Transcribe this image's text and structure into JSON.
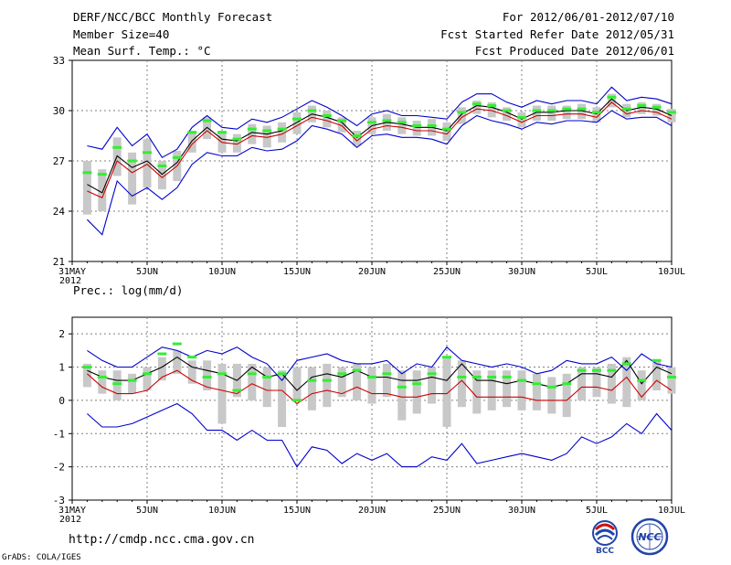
{
  "header": {
    "title": "DERF/NCC/BCC Monthly Forecast",
    "member_size": "Member Size=40",
    "variable": "Mean Surf. Temp.: °C",
    "period": "For 2012/06/01-2012/07/10",
    "fcst_started": "Fcst Started Refer Date 2012/05/31",
    "fcst_produced": "Fcst Produced Date 2012/06/01"
  },
  "footer": {
    "url": "http://cmdp.ncc.cma.gov.cn",
    "grads": "GrADS: COLA/IGES",
    "logo_bcc": "BCC",
    "logo_ncc": "NCC"
  },
  "colors": {
    "envelope": "#0000cc",
    "ensemble_mean": "#000000",
    "lower": "#cc0000",
    "spread_bar": "#c8c8c8",
    "observed_tick": "#33ee33",
    "grid": "#808080"
  },
  "chart_data": [
    {
      "type": "line",
      "title": "Mean Surf. Temp.: °C",
      "ylim": [
        21,
        33
      ],
      "yticks": [
        21,
        24,
        27,
        30,
        33
      ],
      "x_tick_labels": [
        "31MAY",
        "5JUN",
        "10JUN",
        "15JUN",
        "20JUN",
        "25JUN",
        "30JUN",
        "5JUL",
        "10JUL"
      ],
      "x_year_label": "2012",
      "x_day_positions": [
        0,
        5,
        10,
        15,
        20,
        25,
        30,
        35,
        40
      ],
      "x": [
        1,
        2,
        3,
        4,
        5,
        6,
        7,
        8,
        9,
        10,
        11,
        12,
        13,
        14,
        15,
        16,
        17,
        18,
        19,
        20,
        21,
        22,
        23,
        24,
        25,
        26,
        27,
        28,
        29,
        30,
        31,
        32,
        33,
        34,
        35,
        36,
        37,
        38,
        39,
        40
      ],
      "series": [
        {
          "name": "max",
          "values": [
            27.9,
            27.7,
            29.0,
            27.9,
            28.6,
            27.2,
            27.7,
            29.0,
            29.7,
            29.0,
            28.9,
            29.5,
            29.3,
            29.6,
            30.1,
            30.6,
            30.2,
            29.7,
            29.1,
            29.8,
            30.0,
            29.7,
            29.7,
            29.6,
            29.5,
            30.5,
            31.0,
            31.0,
            30.5,
            30.2,
            30.6,
            30.4,
            30.6,
            30.6,
            30.4,
            31.4,
            30.6,
            30.8,
            30.7,
            30.4
          ]
        },
        {
          "name": "mean",
          "values": [
            25.6,
            25.1,
            27.3,
            26.6,
            27.0,
            26.2,
            26.9,
            28.2,
            29.0,
            28.3,
            28.2,
            28.7,
            28.6,
            28.8,
            29.3,
            29.8,
            29.6,
            29.3,
            28.4,
            29.1,
            29.3,
            29.2,
            29.0,
            29.0,
            28.8,
            29.8,
            30.3,
            30.2,
            29.9,
            29.5,
            29.9,
            29.9,
            30.0,
            30.0,
            29.8,
            30.7,
            30.0,
            30.2,
            30.1,
            29.7
          ]
        },
        {
          "name": "lower",
          "values": [
            25.2,
            24.8,
            27.0,
            26.3,
            26.8,
            26.0,
            26.7,
            28.0,
            28.8,
            28.1,
            28.0,
            28.5,
            28.4,
            28.6,
            29.1,
            29.6,
            29.4,
            29.1,
            28.2,
            28.9,
            29.1,
            29.0,
            28.8,
            28.8,
            28.6,
            29.6,
            30.1,
            30.0,
            29.7,
            29.3,
            29.7,
            29.7,
            29.8,
            29.8,
            29.6,
            30.5,
            29.8,
            30.0,
            29.9,
            29.5
          ]
        },
        {
          "name": "min",
          "values": [
            23.5,
            22.6,
            25.8,
            24.9,
            25.4,
            24.7,
            25.4,
            26.8,
            27.5,
            27.3,
            27.3,
            27.8,
            27.6,
            27.7,
            28.2,
            29.1,
            28.9,
            28.6,
            27.8,
            28.5,
            28.6,
            28.4,
            28.4,
            28.3,
            28.0,
            29.1,
            29.7,
            29.4,
            29.2,
            28.9,
            29.3,
            29.2,
            29.4,
            29.4,
            29.3,
            30.0,
            29.5,
            29.6,
            29.6,
            29.1
          ]
        },
        {
          "name": "spread_high",
          "values": [
            27.0,
            26.5,
            28.4,
            27.5,
            28.3,
            27.0,
            27.6,
            28.8,
            29.6,
            28.8,
            28.6,
            29.2,
            29.1,
            29.3,
            29.9,
            30.3,
            30.0,
            29.6,
            28.8,
            29.6,
            29.8,
            29.6,
            29.4,
            29.5,
            29.3,
            30.2,
            30.6,
            30.5,
            30.2,
            29.9,
            30.3,
            30.3,
            30.3,
            30.4,
            30.2,
            31.0,
            30.4,
            30.5,
            30.4,
            30.1
          ]
        },
        {
          "name": "spread_low",
          "values": [
            23.8,
            24.0,
            26.1,
            24.4,
            25.4,
            25.3,
            25.8,
            27.5,
            28.3,
            27.5,
            27.5,
            28.0,
            27.8,
            28.1,
            28.6,
            29.3,
            29.0,
            28.7,
            27.9,
            28.6,
            28.8,
            28.6,
            28.5,
            28.5,
            28.2,
            29.2,
            29.8,
            29.6,
            29.4,
            29.0,
            29.4,
            29.4,
            29.5,
            29.5,
            29.3,
            30.2,
            29.6,
            29.8,
            29.7,
            29.3
          ]
        },
        {
          "name": "observed",
          "values": [
            26.3,
            26.2,
            27.8,
            27.0,
            27.5,
            26.7,
            27.2,
            28.7,
            29.4,
            28.7,
            28.3,
            28.9,
            28.8,
            28.9,
            29.5,
            30.0,
            29.7,
            29.4,
            28.5,
            29.3,
            29.4,
            29.3,
            29.1,
            29.1,
            28.9,
            29.9,
            30.4,
            30.3,
            30.0,
            29.6,
            30.0,
            30.0,
            30.1,
            30.1,
            29.9,
            30.8,
            30.1,
            30.3,
            30.2,
            29.9
          ]
        }
      ]
    },
    {
      "type": "line",
      "title": "Prec.: log(mm/d)",
      "ylim": [
        -3,
        2.5
      ],
      "yticks": [
        -3,
        -2,
        -1,
        0,
        1,
        2
      ],
      "x_tick_labels": [
        "31MAY",
        "5JUN",
        "10JUN",
        "15JUN",
        "20JUN",
        "25JUN",
        "30JUN",
        "5JUL",
        "10JUL"
      ],
      "x_year_label": "2012",
      "x_day_positions": [
        0,
        5,
        10,
        15,
        20,
        25,
        30,
        35,
        40
      ],
      "x": [
        1,
        2,
        3,
        4,
        5,
        6,
        7,
        8,
        9,
        10,
        11,
        12,
        13,
        14,
        15,
        16,
        17,
        18,
        19,
        20,
        21,
        22,
        23,
        24,
        25,
        26,
        27,
        28,
        29,
        30,
        31,
        32,
        33,
        34,
        35,
        36,
        37,
        38,
        39,
        40
      ],
      "series": [
        {
          "name": "max",
          "values": [
            1.5,
            1.2,
            1.0,
            1.0,
            1.3,
            1.6,
            1.5,
            1.3,
            1.5,
            1.4,
            1.6,
            1.3,
            1.1,
            0.6,
            1.2,
            1.3,
            1.4,
            1.2,
            1.1,
            1.1,
            1.2,
            0.8,
            1.1,
            1.0,
            1.6,
            1.2,
            1.1,
            1.0,
            1.1,
            1.0,
            0.8,
            0.9,
            1.2,
            1.1,
            1.1,
            1.3,
            0.9,
            1.4,
            1.1,
            1.0
          ]
        },
        {
          "name": "mean",
          "values": [
            0.9,
            0.7,
            0.6,
            0.6,
            0.8,
            1.0,
            1.3,
            1.0,
            0.9,
            0.8,
            0.6,
            1.0,
            0.7,
            0.8,
            0.3,
            0.7,
            0.8,
            0.7,
            0.9,
            0.7,
            0.7,
            0.6,
            0.6,
            0.7,
            0.6,
            1.1,
            0.6,
            0.6,
            0.5,
            0.6,
            0.5,
            0.4,
            0.5,
            0.8,
            0.8,
            0.7,
            1.2,
            0.5,
            1.0,
            0.8
          ]
        },
        {
          "name": "lower",
          "values": [
            0.8,
            0.4,
            0.2,
            0.2,
            0.3,
            0.7,
            0.9,
            0.6,
            0.4,
            0.3,
            0.2,
            0.5,
            0.3,
            0.3,
            -0.1,
            0.2,
            0.3,
            0.2,
            0.4,
            0.2,
            0.2,
            0.1,
            0.1,
            0.2,
            0.2,
            0.6,
            0.1,
            0.1,
            0.1,
            0.1,
            0.0,
            0.0,
            0.0,
            0.4,
            0.4,
            0.3,
            0.7,
            0.1,
            0.6,
            0.3
          ]
        },
        {
          "name": "min",
          "values": [
            -0.4,
            -0.8,
            -0.8,
            -0.7,
            -0.5,
            -0.3,
            -0.1,
            -0.4,
            -0.9,
            -0.9,
            -1.2,
            -0.9,
            -1.2,
            -1.2,
            -2.0,
            -1.4,
            -1.5,
            -1.9,
            -1.6,
            -1.8,
            -1.6,
            -2.0,
            -2.0,
            -1.7,
            -1.8,
            -1.3,
            -1.9,
            -1.8,
            -1.7,
            -1.6,
            -1.7,
            -1.8,
            -1.6,
            -1.1,
            -1.3,
            -1.1,
            -0.7,
            -1.0,
            -0.4,
            -0.9
          ]
        },
        {
          "name": "spread_high",
          "values": [
            1.1,
            0.9,
            0.9,
            0.8,
            1.0,
            1.3,
            1.5,
            1.2,
            1.2,
            1.1,
            1.1,
            1.1,
            1.0,
            0.9,
            1.0,
            1.0,
            1.1,
            1.0,
            1.1,
            1.0,
            1.1,
            0.9,
            0.9,
            1.0,
            1.3,
            1.2,
            0.9,
            0.9,
            0.9,
            0.9,
            0.8,
            0.7,
            0.8,
            1.0,
            1.0,
            1.1,
            1.3,
            0.9,
            1.2,
            1.0
          ]
        },
        {
          "name": "spread_low",
          "values": [
            0.4,
            0.2,
            0.0,
            0.2,
            0.3,
            0.6,
            0.8,
            0.5,
            0.3,
            -0.7,
            0.1,
            0.0,
            -0.2,
            -0.8,
            0.0,
            -0.3,
            -0.2,
            0.1,
            0.0,
            -0.1,
            0.1,
            -0.6,
            -0.4,
            -0.1,
            -0.8,
            -0.2,
            -0.4,
            -0.3,
            -0.2,
            -0.3,
            -0.3,
            -0.4,
            -0.5,
            0.0,
            0.1,
            -0.1,
            -0.2,
            0.0,
            0.3,
            0.2
          ]
        },
        {
          "name": "observed",
          "values": [
            1.0,
            0.7,
            0.5,
            0.6,
            0.8,
            1.4,
            1.7,
            1.3,
            0.7,
            0.8,
            0.3,
            0.8,
            0.7,
            0.8,
            0.0,
            0.6,
            0.6,
            0.8,
            0.9,
            0.7,
            0.8,
            0.4,
            0.5,
            0.8,
            1.3,
            0.7,
            0.7,
            0.7,
            0.7,
            0.6,
            0.5,
            0.4,
            0.5,
            0.9,
            0.9,
            0.9,
            1.1,
            0.6,
            1.2,
            0.7
          ]
        }
      ]
    }
  ]
}
